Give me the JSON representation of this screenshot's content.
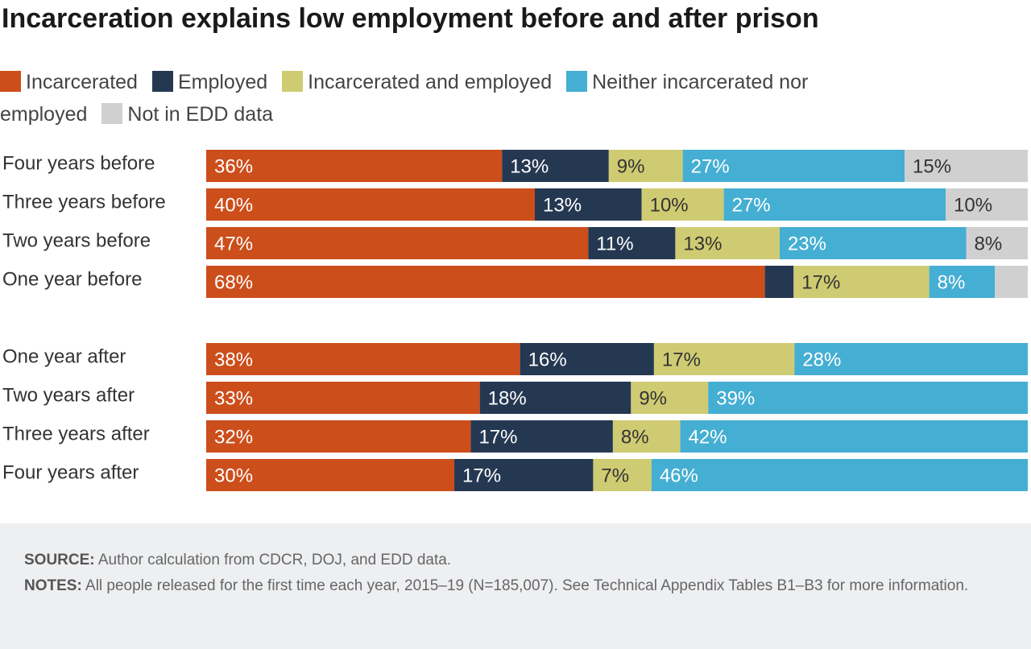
{
  "chart_data": {
    "type": "stacked-bar-horizontal",
    "title": "Incarceration explains low employment before and after prison",
    "categories": [
      "Four years before",
      "Three years before",
      "Two years before",
      "One year before",
      null,
      "One year after",
      "Two years after",
      "Three years after",
      "Four years after"
    ],
    "xlim": [
      0,
      100
    ],
    "series": [
      {
        "name": "Incarcerated",
        "color": "#cc4e1b",
        "label_color": "#ffffff",
        "values": [
          36,
          40,
          46.5,
          68,
          null,
          38.2,
          33.3,
          32.2,
          30.2
        ],
        "value_labels": [
          "36%",
          "40%",
          "47%",
          "68%",
          null,
          "38%",
          "33%",
          "32%",
          "30%"
        ]
      },
      {
        "name": "Employed",
        "color": "#253852",
        "label_color": "#ffffff",
        "values": [
          13,
          13,
          10.6,
          3.5,
          null,
          16.3,
          18.4,
          17.3,
          16.9
        ],
        "value_labels": [
          "13%",
          "13%",
          "11%",
          null,
          null,
          "16%",
          "18%",
          "17%",
          "17%"
        ]
      },
      {
        "name": "Incarcerated and employed",
        "color": "#cfcb72",
        "label_color": "#333333",
        "values": [
          9,
          10,
          12.7,
          16.5,
          null,
          17.1,
          9.4,
          8.2,
          7.1
        ],
        "value_labels": [
          "9%",
          "10%",
          "13%",
          "17%",
          null,
          "17%",
          "9%",
          "8%",
          "7%"
        ]
      },
      {
        "name": "Neither incarcerated nor employed",
        "color": "#45aed3",
        "label_color": "#ffffff",
        "values": [
          27,
          27,
          22.7,
          8,
          null,
          28.4,
          38.9,
          42.3,
          45.8
        ],
        "value_labels": [
          "27%",
          "27%",
          "23%",
          "8%",
          null,
          "28%",
          "39%",
          "42%",
          "46%"
        ]
      },
      {
        "name": "Not in EDD data",
        "color": "#d0d0d0",
        "label_color": "#333333",
        "values": [
          15,
          10,
          7.5,
          4,
          null,
          null,
          null,
          null,
          null
        ],
        "value_labels": [
          "15%",
          "10%",
          "8%",
          null,
          null,
          null,
          null,
          null,
          null
        ]
      }
    ]
  },
  "footer": {
    "source_label": "SOURCE:",
    "source": "Author calculation from CDCR, DOJ, and EDD data.",
    "notes_label": "NOTES:",
    "notes": "All people released for the first time each year, 2015–19 (N=185,007). See Technical Appendix Tables B1–B3 for more information."
  }
}
